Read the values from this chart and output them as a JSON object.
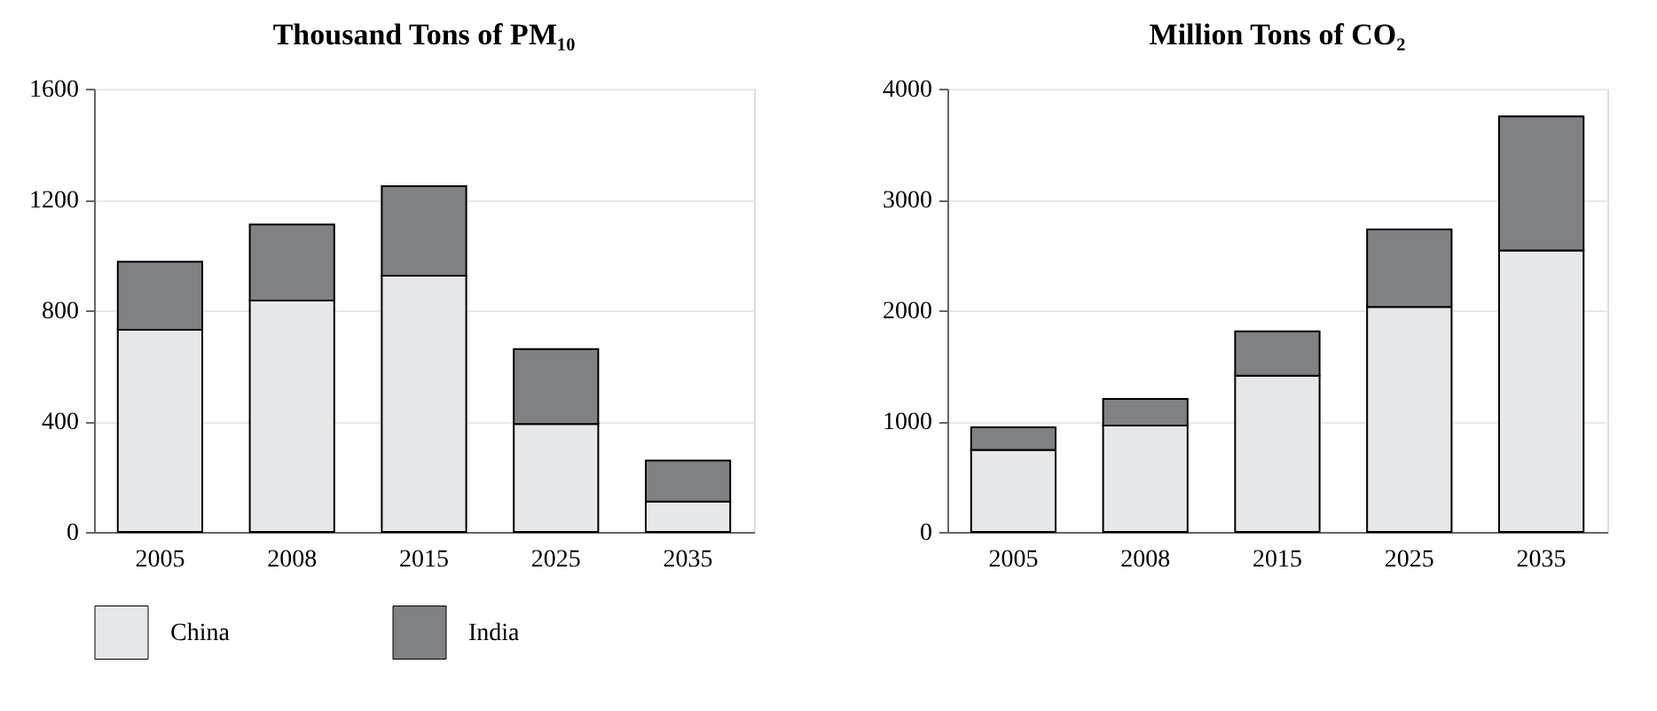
{
  "chart_data": [
    {
      "type": "bar",
      "title": "Thousand Tons of PM₁₀",
      "stacked": true,
      "categories": [
        "2005",
        "2008",
        "2015",
        "2025",
        "2035"
      ],
      "series": [
        {
          "name": "China",
          "color": "#e6e7e9",
          "values": [
            730,
            835,
            925,
            390,
            110
          ]
        },
        {
          "name": "India",
          "color": "#808184",
          "values": [
            245,
            275,
            323,
            270,
            148
          ]
        }
      ],
      "ylim": [
        0,
        1600
      ],
      "yticks": [
        0,
        400,
        800,
        1200,
        1600
      ],
      "grid": "y",
      "legend": "bottom"
    },
    {
      "type": "bar",
      "title": "Million Tons of CO₂",
      "stacked": true,
      "categories": [
        "2005",
        "2008",
        "2015",
        "2025",
        "2035"
      ],
      "series": [
        {
          "name": "China",
          "color": "#e6e7e9",
          "values": [
            740,
            960,
            1410,
            2030,
            2540
          ]
        },
        {
          "name": "India",
          "color": "#808184",
          "values": [
            205,
            240,
            400,
            700,
            1210
          ]
        }
      ],
      "ylim": [
        0,
        4000
      ],
      "yticks": [
        0,
        1000,
        2000,
        3000,
        4000
      ],
      "grid": "y",
      "legend": "bottom"
    }
  ]
}
